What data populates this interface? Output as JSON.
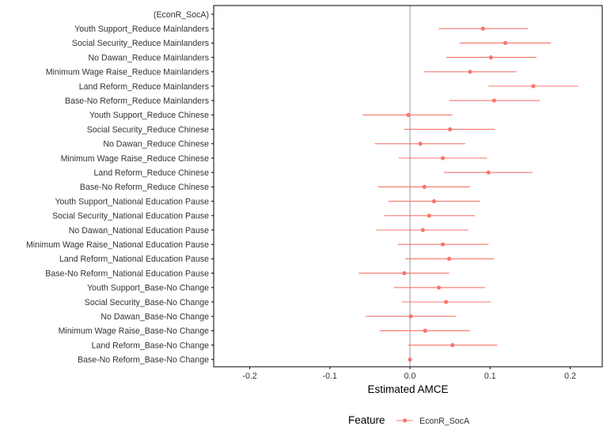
{
  "chart_data": {
    "type": "scatter",
    "subtype": "coefficient-plot-with-error-bars",
    "orientation": "horizontal",
    "title": "",
    "xlabel": "Estimated AMCE",
    "ylabel": "",
    "xlim": [
      -0.245,
      0.24
    ],
    "xticks": [
      -0.2,
      -0.1,
      0.0,
      0.1,
      0.2
    ],
    "xtick_labels": [
      "-0.2",
      "-0.1",
      "0.0",
      "0.1",
      "0.2"
    ],
    "reference_line_x": 0,
    "grid": false,
    "legend": {
      "title": "Feature",
      "placement": "bottom",
      "entries": [
        "EconR_SocA"
      ]
    },
    "colors": {
      "series": "#f8766d",
      "axis": "#000000",
      "reference": "#999999",
      "text": "#333333"
    },
    "group_header": "(EconR_SocA)",
    "series": [
      {
        "name": "EconR_SocA",
        "points": [
          {
            "label": "Youth Support_Reduce Mainlanders",
            "estimate": 0.091,
            "lower": 0.036,
            "upper": 0.147
          },
          {
            "label": "Social Security_Reduce Mainlanders",
            "estimate": 0.119,
            "lower": 0.062,
            "upper": 0.176
          },
          {
            "label": "No Dawan_Reduce Mainlanders",
            "estimate": 0.101,
            "lower": 0.045,
            "upper": 0.158
          },
          {
            "label": "Minimum Wage Raise_Reduce Mainlanders",
            "estimate": 0.075,
            "lower": 0.018,
            "upper": 0.133
          },
          {
            "label": "Land Reform_Reduce Mainlanders",
            "estimate": 0.154,
            "lower": 0.098,
            "upper": 0.21
          },
          {
            "label": "Base-No Reform_Reduce Mainlanders",
            "estimate": 0.105,
            "lower": 0.049,
            "upper": 0.162
          },
          {
            "label": "Youth Support_Reduce Chinese",
            "estimate": -0.002,
            "lower": -0.059,
            "upper": 0.053
          },
          {
            "label": "Social Security_Reduce Chinese",
            "estimate": 0.05,
            "lower": -0.007,
            "upper": 0.106
          },
          {
            "label": "No Dawan_Reduce Chinese",
            "estimate": 0.013,
            "lower": -0.044,
            "upper": 0.069
          },
          {
            "label": "Minimum Wage Raise_Reduce Chinese",
            "estimate": 0.041,
            "lower": -0.014,
            "upper": 0.096
          },
          {
            "label": "Land Reform_Reduce Chinese",
            "estimate": 0.098,
            "lower": 0.042,
            "upper": 0.153
          },
          {
            "label": "Base-No Reform_Reduce Chinese",
            "estimate": 0.018,
            "lower": -0.04,
            "upper": 0.075
          },
          {
            "label": "Youth Support_National Education Pause",
            "estimate": 0.03,
            "lower": -0.027,
            "upper": 0.087
          },
          {
            "label": "Social Security_National Education Pause",
            "estimate": 0.024,
            "lower": -0.032,
            "upper": 0.081
          },
          {
            "label": "No Dawan_National Education Pause",
            "estimate": 0.016,
            "lower": -0.042,
            "upper": 0.073
          },
          {
            "label": "Minimum Wage Raise_National Education Pause",
            "estimate": 0.041,
            "lower": -0.015,
            "upper": 0.098
          },
          {
            "label": "Land Reform_National Education Pause",
            "estimate": 0.049,
            "lower": -0.006,
            "upper": 0.105
          },
          {
            "label": "Base-No Reform_National Education Pause",
            "estimate": -0.007,
            "lower": -0.064,
            "upper": 0.049
          },
          {
            "label": "Youth Support_Base-No Change",
            "estimate": 0.036,
            "lower": -0.02,
            "upper": 0.094
          },
          {
            "label": "Social Security_Base-No Change",
            "estimate": 0.045,
            "lower": -0.01,
            "upper": 0.101
          },
          {
            "label": "No Dawan_Base-No Change",
            "estimate": 0.001,
            "lower": -0.055,
            "upper": 0.057
          },
          {
            "label": "Minimum Wage Raise_Base-No Change",
            "estimate": 0.019,
            "lower": -0.038,
            "upper": 0.075
          },
          {
            "label": "Land Reform_Base-No Change",
            "estimate": 0.053,
            "lower": -0.002,
            "upper": 0.109
          },
          {
            "label": "Base-No Reform_Base-No Change",
            "estimate": 0.0,
            "lower": null,
            "upper": null
          }
        ]
      }
    ]
  }
}
